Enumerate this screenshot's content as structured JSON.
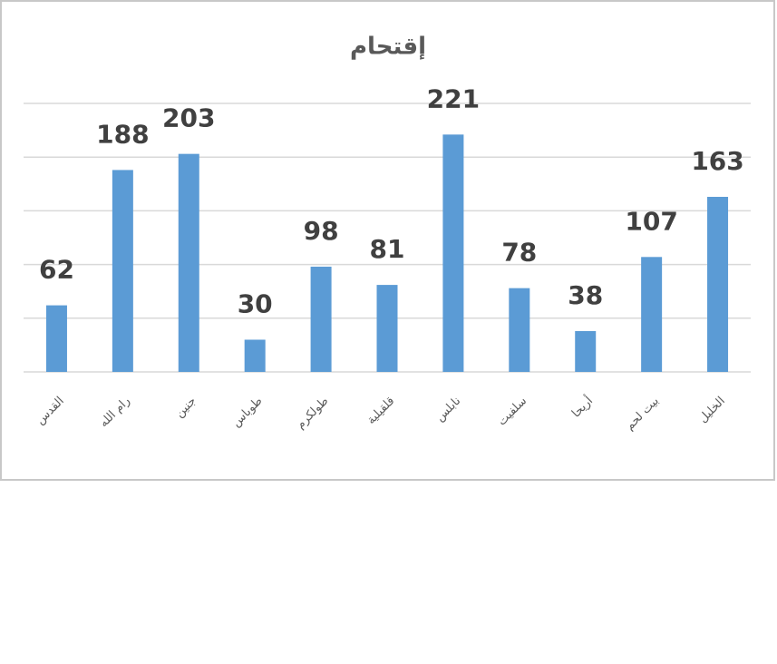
{
  "chart_data": {
    "type": "bar",
    "title": "إقتحام",
    "categories": [
      "القدس",
      "رام الله",
      "جنين",
      "طوباس",
      "طولكرم",
      "قلقيلية",
      "نابلس",
      "سلفيت",
      "أريحا",
      "بيت لحم",
      "الخليل"
    ],
    "values": [
      62,
      188,
      203,
      30,
      98,
      81,
      221,
      78,
      38,
      107,
      163
    ],
    "color": "#5b9bd5",
    "ylim": [
      0,
      250
    ],
    "yticks": [
      0,
      50,
      100,
      150,
      200,
      250
    ],
    "grid": true
  }
}
